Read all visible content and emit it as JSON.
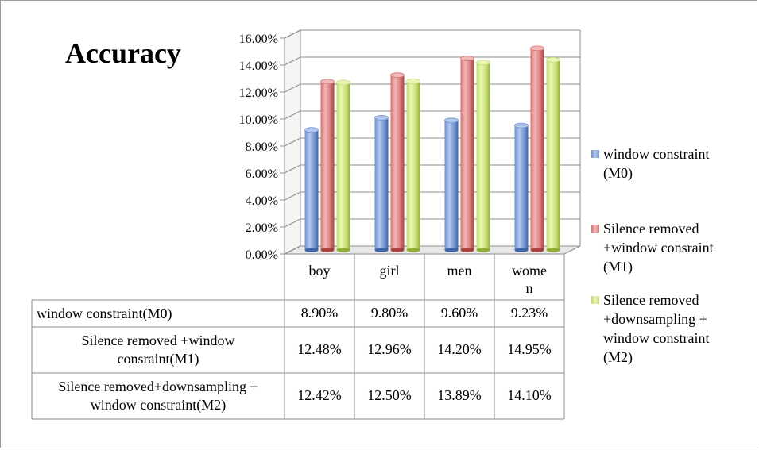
{
  "chart_data": {
    "type": "bar",
    "title": "Accuracy",
    "categories": [
      "boy",
      "girl",
      "men",
      "women"
    ],
    "category_display": [
      "boy",
      "girl",
      "men",
      "wome\nn"
    ],
    "y_ticks": [
      "0.00%",
      "2.00%",
      "4.00%",
      "6.00%",
      "8.00%",
      "10.00%",
      "12.00%",
      "14.00%",
      "16.00%"
    ],
    "ylim": [
      0,
      16
    ],
    "grid": true,
    "legend_position": "right",
    "series": [
      {
        "name": "window constraint (M0)",
        "legend_lines": [
          "window constraint",
          "(M0)"
        ],
        "table_label_lines": [
          "window constraint(M0)"
        ],
        "values": [
          8.9,
          9.8,
          9.6,
          9.23
        ],
        "labels": [
          "8.90%",
          "9.80%",
          "9.60%",
          "9.23%"
        ],
        "color": "#6f93cf",
        "light": "#b3c8ee",
        "dark": "#3f63a3"
      },
      {
        "name": "Silence removed +window consraint (M1)",
        "legend_lines": [
          "Silence removed",
          "+window consraint",
          "(M1)"
        ],
        "table_label_lines": [
          "Silence removed +window",
          "consraint(M1)"
        ],
        "values": [
          12.48,
          12.96,
          14.2,
          14.95
        ],
        "labels": [
          "12.48%",
          "12.96%",
          "14.20%",
          "14.95%"
        ],
        "color": "#d47473",
        "light": "#f1b9b8",
        "dark": "#a84442"
      },
      {
        "name": "Silence removed +downsampling + window constraint (M2)",
        "legend_lines": [
          "Silence removed",
          "+downsampling +",
          "window constraint",
          "(M2)"
        ],
        "table_label_lines": [
          "Silence removed+downsampling +",
          "window constraint(M2)"
        ],
        "values": [
          12.42,
          12.5,
          13.89,
          14.1
        ],
        "labels": [
          "12.42%",
          "12.50%",
          "13.89%",
          "14.10%"
        ],
        "color": "#c4dc6e",
        "light": "#eaf6b8",
        "dark": "#93ad3a"
      }
    ]
  }
}
